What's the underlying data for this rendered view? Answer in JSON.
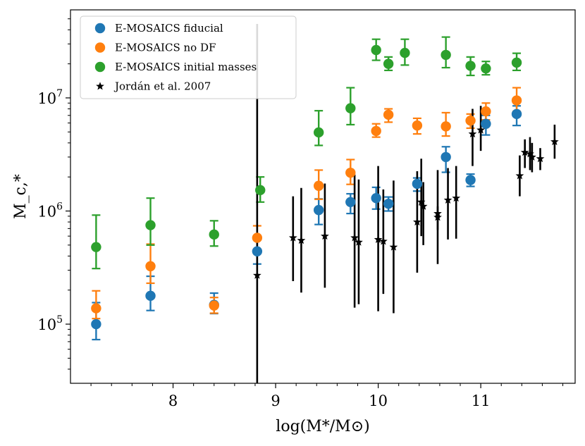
{
  "chart_data": {
    "type": "scatter",
    "title": "",
    "xlabel": "log(M*/M⊙)",
    "ylabel": "M_c,*",
    "xlim": [
      7.0,
      11.92
    ],
    "ylim": [
      30000,
      60000000
    ],
    "yscale": "log",
    "legend_position": "top-left",
    "x_ticks": [
      {
        "value": 8,
        "label": "8"
      },
      {
        "value": 9,
        "label": "9"
      },
      {
        "value": 10,
        "label": "10"
      },
      {
        "value": 11,
        "label": "11"
      }
    ],
    "y_ticks": [
      {
        "value": 100000,
        "base": "10",
        "exp": "5"
      },
      {
        "value": 1000000,
        "base": "10",
        "exp": "6"
      },
      {
        "value": 10000000,
        "base": "10",
        "exp": "7"
      }
    ],
    "series": [
      {
        "name": "E-MOSAICS fiducial",
        "color": "#1f77b4",
        "marker": "circle",
        "points": [
          {
            "x": 7.25,
            "y": 100000,
            "lo": 73000,
            "hi": 155000
          },
          {
            "x": 7.78,
            "y": 178000,
            "lo": 132000,
            "hi": 265000
          },
          {
            "x": 8.4,
            "y": 148000,
            "lo": 124000,
            "hi": 188000
          },
          {
            "x": 8.82,
            "y": 440000,
            "lo": 340000,
            "hi": 560000
          },
          {
            "x": 9.42,
            "y": 1020000,
            "lo": 760000,
            "hi": 1280000
          },
          {
            "x": 9.73,
            "y": 1200000,
            "lo": 950000,
            "hi": 1420000
          },
          {
            "x": 9.98,
            "y": 1300000,
            "lo": 1040000,
            "hi": 1620000
          },
          {
            "x": 10.1,
            "y": 1160000,
            "lo": 1000000,
            "hi": 1330000
          },
          {
            "x": 10.38,
            "y": 1740000,
            "lo": 1500000,
            "hi": 1960000
          },
          {
            "x": 10.66,
            "y": 3000000,
            "lo": 2200000,
            "hi": 3700000
          },
          {
            "x": 10.9,
            "y": 1880000,
            "lo": 1650000,
            "hi": 2120000
          },
          {
            "x": 11.05,
            "y": 5900000,
            "lo": 4700000,
            "hi": 7000000
          },
          {
            "x": 11.35,
            "y": 7200000,
            "lo": 5700000,
            "hi": 8500000
          }
        ]
      },
      {
        "name": "E-MOSAICS no DF",
        "color": "#ff7f0e",
        "marker": "circle",
        "points": [
          {
            "x": 7.25,
            "y": 138000,
            "lo": 112000,
            "hi": 197000
          },
          {
            "x": 7.78,
            "y": 325000,
            "lo": 230000,
            "hi": 510000
          },
          {
            "x": 8.4,
            "y": 146000,
            "lo": 125000,
            "hi": 172000
          },
          {
            "x": 8.82,
            "y": 580000,
            "lo": 460000,
            "hi": 740000
          },
          {
            "x": 9.42,
            "y": 1670000,
            "lo": 1270000,
            "hi": 2300000
          },
          {
            "x": 9.73,
            "y": 2180000,
            "lo": 1720000,
            "hi": 2850000
          },
          {
            "x": 9.98,
            "y": 5100000,
            "lo": 4500000,
            "hi": 5900000
          },
          {
            "x": 10.1,
            "y": 7100000,
            "lo": 6100000,
            "hi": 8000000
          },
          {
            "x": 10.38,
            "y": 5700000,
            "lo": 4800000,
            "hi": 6600000
          },
          {
            "x": 10.66,
            "y": 5600000,
            "lo": 4600000,
            "hi": 7400000
          },
          {
            "x": 10.9,
            "y": 6300000,
            "lo": 5400000,
            "hi": 7200000
          },
          {
            "x": 11.05,
            "y": 7600000,
            "lo": 6400000,
            "hi": 9000000
          },
          {
            "x": 11.35,
            "y": 9500000,
            "lo": 7600000,
            "hi": 12300000
          }
        ]
      },
      {
        "name": "E-MOSAICS initial masses",
        "color": "#2ca02c",
        "marker": "circle",
        "points": [
          {
            "x": 7.25,
            "y": 480000,
            "lo": 310000,
            "hi": 920000
          },
          {
            "x": 7.78,
            "y": 750000,
            "lo": 500000,
            "hi": 1300000
          },
          {
            "x": 8.4,
            "y": 620000,
            "lo": 490000,
            "hi": 820000
          },
          {
            "x": 8.85,
            "y": 1530000,
            "lo": 1200000,
            "hi": 2000000
          },
          {
            "x": 9.42,
            "y": 4950000,
            "lo": 3800000,
            "hi": 7700000
          },
          {
            "x": 9.73,
            "y": 8100000,
            "lo": 5800000,
            "hi": 12300000
          },
          {
            "x": 9.98,
            "y": 26500000,
            "lo": 21500000,
            "hi": 33000000
          },
          {
            "x": 10.1,
            "y": 20000000,
            "lo": 17500000,
            "hi": 23000000
          },
          {
            "x": 10.26,
            "y": 25000000,
            "lo": 19500000,
            "hi": 33000000
          },
          {
            "x": 10.66,
            "y": 24000000,
            "lo": 18500000,
            "hi": 34500000
          },
          {
            "x": 10.9,
            "y": 19200000,
            "lo": 15800000,
            "hi": 23000000
          },
          {
            "x": 11.05,
            "y": 18200000,
            "lo": 16000000,
            "hi": 21000000
          },
          {
            "x": 11.35,
            "y": 20500000,
            "lo": 17500000,
            "hi": 24800000
          }
        ]
      },
      {
        "name": "Jordán et al. 2007",
        "color": "#000000",
        "marker": "star",
        "points": [
          {
            "x": 8.82,
            "y": 270000,
            "lo": 30000,
            "hi": 45000000
          },
          {
            "x": 9.17,
            "y": 580000,
            "lo": 240000,
            "hi": 1350000
          },
          {
            "x": 9.25,
            "y": 550000,
            "lo": 190000,
            "hi": 1600000
          },
          {
            "x": 9.48,
            "y": 600000,
            "lo": 210000,
            "hi": 1750000
          },
          {
            "x": 9.77,
            "y": 580000,
            "lo": 140000,
            "hi": 2100000
          },
          {
            "x": 9.81,
            "y": 530000,
            "lo": 150000,
            "hi": 1900000
          },
          {
            "x": 10.0,
            "y": 560000,
            "lo": 130000,
            "hi": 2500000
          },
          {
            "x": 10.05,
            "y": 540000,
            "lo": 185000,
            "hi": 1550000
          },
          {
            "x": 10.15,
            "y": 480000,
            "lo": 125000,
            "hi": 1860000
          },
          {
            "x": 10.38,
            "y": 800000,
            "lo": 285000,
            "hi": 2250000
          },
          {
            "x": 10.42,
            "y": 1200000,
            "lo": 600000,
            "hi": 2900000
          },
          {
            "x": 10.44,
            "y": 1100000,
            "lo": 500000,
            "hi": 1800000
          },
          {
            "x": 10.58,
            "y": 950000,
            "lo": 340000,
            "hi": 2300000
          },
          {
            "x": 10.58,
            "y": 880000,
            "lo": 680000,
            "hi": 1100000
          },
          {
            "x": 10.68,
            "y": 1250000,
            "lo": 560000,
            "hi": 2400000
          },
          {
            "x": 10.76,
            "y": 1300000,
            "lo": 570000,
            "hi": 2500000
          },
          {
            "x": 10.92,
            "y": 4800000,
            "lo": 2500000,
            "hi": 8000000
          },
          {
            "x": 11.0,
            "y": 5200000,
            "lo": 3400000,
            "hi": 8500000
          },
          {
            "x": 11.38,
            "y": 2050000,
            "lo": 1350000,
            "hi": 3100000
          },
          {
            "x": 11.43,
            "y": 3300000,
            "lo": 2400000,
            "hi": 4300000
          },
          {
            "x": 11.48,
            "y": 3200000,
            "lo": 2300000,
            "hi": 4500000
          },
          {
            "x": 11.5,
            "y": 3000000,
            "lo": 2200000,
            "hi": 4000000
          },
          {
            "x": 11.58,
            "y": 2900000,
            "lo": 2300000,
            "hi": 3600000
          },
          {
            "x": 11.72,
            "y": 4100000,
            "lo": 2900000,
            "hi": 5800000
          }
        ]
      }
    ]
  }
}
